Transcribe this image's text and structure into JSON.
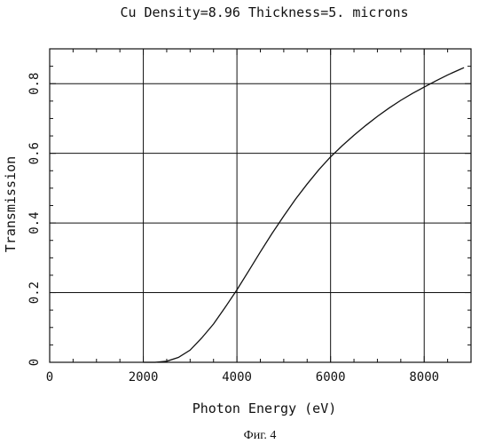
{
  "chart_data": {
    "type": "line",
    "title": "Cu Density=8.96 Thickness=5. microns",
    "xlabel": "Photon Energy (eV)",
    "ylabel": "Transmission",
    "xlim": [
      0,
      9000
    ],
    "ylim": [
      0,
      0.9
    ],
    "grid": true,
    "x_ticks": [
      0,
      2000,
      4000,
      6000,
      8000
    ],
    "x_tick_labels": [
      "0",
      "2000",
      "4000",
      "6000",
      "8000"
    ],
    "y_ticks": [
      0,
      0.2,
      0.4,
      0.6,
      0.8
    ],
    "y_tick_labels": [
      "0",
      "0.2",
      "0.4",
      "0.6",
      "0.8"
    ],
    "series": [
      {
        "x": [
          2000,
          2250,
          2500,
          2750,
          3000,
          3250,
          3500,
          3750,
          4000,
          4250,
          4500,
          4750,
          5000,
          5250,
          5500,
          5750,
          6000,
          6250,
          6500,
          6750,
          7000,
          7250,
          7500,
          7750,
          8000,
          8250,
          8500,
          8750,
          8850
        ],
        "y": [
          0.0,
          0.0,
          0.003,
          0.014,
          0.035,
          0.07,
          0.11,
          0.158,
          0.208,
          0.262,
          0.317,
          0.37,
          0.42,
          0.468,
          0.512,
          0.553,
          0.59,
          0.622,
          0.652,
          0.68,
          0.706,
          0.73,
          0.752,
          0.772,
          0.79,
          0.808,
          0.825,
          0.84,
          0.846
        ]
      }
    ]
  },
  "figure_caption": "Фиг. 4"
}
